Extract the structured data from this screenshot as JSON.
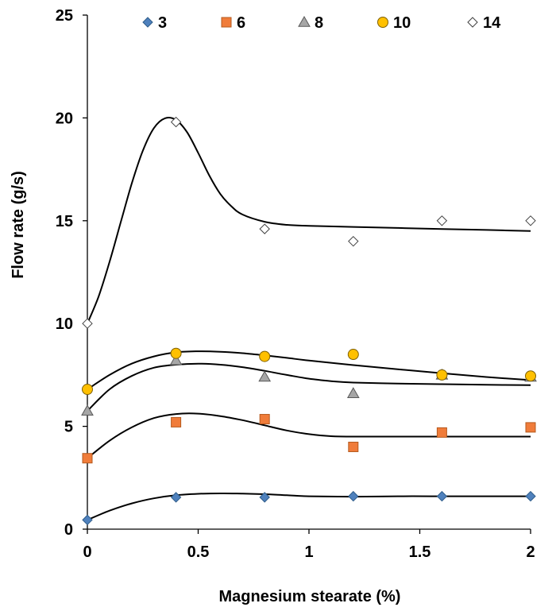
{
  "chart_data": {
    "type": "scatter",
    "title": "",
    "xlabel": "Magnesium stearate (%)",
    "ylabel": "Flow rate (g/s)",
    "xlim": [
      0,
      2
    ],
    "ylim": [
      0,
      25
    ],
    "x_ticks": [
      0,
      0.5,
      1,
      1.5,
      2
    ],
    "y_ticks": [
      0,
      5,
      10,
      15,
      20,
      25
    ],
    "legend_position": "top",
    "grid": false,
    "series": [
      {
        "name": "3",
        "marker": "diamond",
        "color": "#4f81bd",
        "stroke": "#2f5d8a",
        "points": [
          [
            0,
            0.45
          ],
          [
            0.4,
            1.55
          ],
          [
            0.8,
            1.55
          ],
          [
            1.2,
            1.6
          ],
          [
            1.6,
            1.6
          ],
          [
            2,
            1.6
          ]
        ],
        "fit": [
          [
            0,
            0.45
          ],
          [
            0.1,
            0.9
          ],
          [
            0.2,
            1.25
          ],
          [
            0.3,
            1.5
          ],
          [
            0.4,
            1.65
          ],
          [
            0.5,
            1.72
          ],
          [
            0.6,
            1.74
          ],
          [
            0.7,
            1.73
          ],
          [
            0.8,
            1.7
          ],
          [
            0.9,
            1.65
          ],
          [
            1.0,
            1.6
          ],
          [
            1.2,
            1.58
          ],
          [
            1.4,
            1.6
          ],
          [
            1.6,
            1.6
          ],
          [
            1.8,
            1.6
          ],
          [
            2.0,
            1.6
          ]
        ]
      },
      {
        "name": "6",
        "marker": "square",
        "color": "#f07c3a",
        "stroke": "#b55a1e",
        "points": [
          [
            0,
            3.45
          ],
          [
            0.4,
            5.2
          ],
          [
            0.8,
            5.35
          ],
          [
            1.2,
            4.0
          ],
          [
            1.6,
            4.7
          ],
          [
            2,
            4.95
          ]
        ],
        "fit": [
          [
            0,
            3.45
          ],
          [
            0.1,
            4.3
          ],
          [
            0.2,
            4.95
          ],
          [
            0.3,
            5.4
          ],
          [
            0.4,
            5.6
          ],
          [
            0.5,
            5.62
          ],
          [
            0.6,
            5.5
          ],
          [
            0.7,
            5.3
          ],
          [
            0.8,
            5.05
          ],
          [
            0.9,
            4.8
          ],
          [
            1.0,
            4.62
          ],
          [
            1.1,
            4.52
          ],
          [
            1.2,
            4.5
          ],
          [
            1.4,
            4.5
          ],
          [
            1.6,
            4.5
          ],
          [
            1.8,
            4.5
          ],
          [
            2.0,
            4.5
          ]
        ]
      },
      {
        "name": "8",
        "marker": "triangle",
        "color": "#a6a6a6",
        "stroke": "#595959",
        "points": [
          [
            0,
            5.75
          ],
          [
            0.4,
            8.2
          ],
          [
            0.8,
            7.4
          ],
          [
            1.2,
            6.6
          ],
          [
            1.6,
            7.5
          ],
          [
            2,
            7.4
          ]
        ],
        "fit": [
          [
            0,
            5.75
          ],
          [
            0.1,
            6.8
          ],
          [
            0.2,
            7.45
          ],
          [
            0.3,
            7.85
          ],
          [
            0.4,
            8.0
          ],
          [
            0.5,
            8.05
          ],
          [
            0.6,
            8.0
          ],
          [
            0.7,
            7.88
          ],
          [
            0.8,
            7.7
          ],
          [
            0.9,
            7.5
          ],
          [
            1.0,
            7.32
          ],
          [
            1.1,
            7.2
          ],
          [
            1.2,
            7.13
          ],
          [
            1.4,
            7.08
          ],
          [
            1.6,
            7.05
          ],
          [
            1.8,
            7.02
          ],
          [
            2.0,
            7.0
          ]
        ]
      },
      {
        "name": "10",
        "marker": "circle",
        "color": "#ffc000",
        "stroke": "#7f6000",
        "points": [
          [
            0,
            6.8
          ],
          [
            0.4,
            8.55
          ],
          [
            0.8,
            8.4
          ],
          [
            1.2,
            8.5
          ],
          [
            1.6,
            7.5
          ],
          [
            2,
            7.45
          ]
        ],
        "fit": [
          [
            0,
            6.8
          ],
          [
            0.1,
            7.5
          ],
          [
            0.2,
            8.05
          ],
          [
            0.3,
            8.4
          ],
          [
            0.4,
            8.6
          ],
          [
            0.5,
            8.65
          ],
          [
            0.6,
            8.63
          ],
          [
            0.7,
            8.56
          ],
          [
            0.8,
            8.45
          ],
          [
            0.9,
            8.33
          ],
          [
            1.0,
            8.2
          ],
          [
            1.2,
            7.98
          ],
          [
            1.4,
            7.78
          ],
          [
            1.6,
            7.58
          ],
          [
            1.8,
            7.4
          ],
          [
            2.0,
            7.25
          ]
        ]
      },
      {
        "name": "14",
        "marker": "diamond",
        "color": "#ffffff",
        "stroke": "#404040",
        "points": [
          [
            0,
            10.0
          ],
          [
            0.4,
            19.8
          ],
          [
            0.8,
            14.6
          ],
          [
            1.2,
            14.0
          ],
          [
            1.6,
            15.0
          ],
          [
            2,
            15.0
          ]
        ],
        "fit": [
          [
            0,
            10.0
          ],
          [
            0.05,
            11.3
          ],
          [
            0.1,
            13.0
          ],
          [
            0.15,
            14.9
          ],
          [
            0.2,
            16.8
          ],
          [
            0.25,
            18.4
          ],
          [
            0.3,
            19.5
          ],
          [
            0.35,
            19.98
          ],
          [
            0.4,
            19.9
          ],
          [
            0.45,
            19.3
          ],
          [
            0.5,
            18.3
          ],
          [
            0.55,
            17.2
          ],
          [
            0.6,
            16.3
          ],
          [
            0.65,
            15.7
          ],
          [
            0.7,
            15.3
          ],
          [
            0.8,
            14.95
          ],
          [
            0.9,
            14.8
          ],
          [
            1.0,
            14.75
          ],
          [
            1.2,
            14.7
          ],
          [
            1.4,
            14.65
          ],
          [
            1.6,
            14.6
          ],
          [
            1.8,
            14.55
          ],
          [
            2.0,
            14.5
          ]
        ]
      }
    ]
  }
}
